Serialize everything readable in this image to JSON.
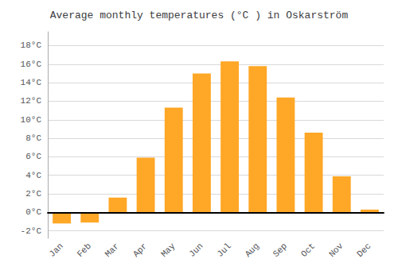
{
  "chart_data": {
    "type": "bar",
    "title": "Average monthly temperatures (°C ) in Oskarström",
    "categories": [
      "Jan",
      "Feb",
      "Mar",
      "Apr",
      "May",
      "Jun",
      "Jul",
      "Aug",
      "Sep",
      "Oct",
      "Nov",
      "Dec"
    ],
    "values": [
      -1.2,
      -1.1,
      1.6,
      5.9,
      11.3,
      15.0,
      16.3,
      15.8,
      12.4,
      8.6,
      3.9,
      0.3
    ],
    "color": "#FFA726",
    "ylim": [
      -2.8,
      19.5
    ],
    "yticks": [
      {
        "value": -2,
        "label": "-2°C"
      },
      {
        "value": 0,
        "label": "0°C"
      },
      {
        "value": 2,
        "label": "2°C"
      },
      {
        "value": 4,
        "label": "4°C"
      },
      {
        "value": 6,
        "label": "6°C"
      },
      {
        "value": 8,
        "label": "8°C"
      },
      {
        "value": 10,
        "label": "10°C"
      },
      {
        "value": 12,
        "label": "12°C"
      },
      {
        "value": 14,
        "label": "14°C"
      },
      {
        "value": 16,
        "label": "16°C"
      },
      {
        "value": 18,
        "label": "18°C"
      }
    ],
    "grid": true
  }
}
